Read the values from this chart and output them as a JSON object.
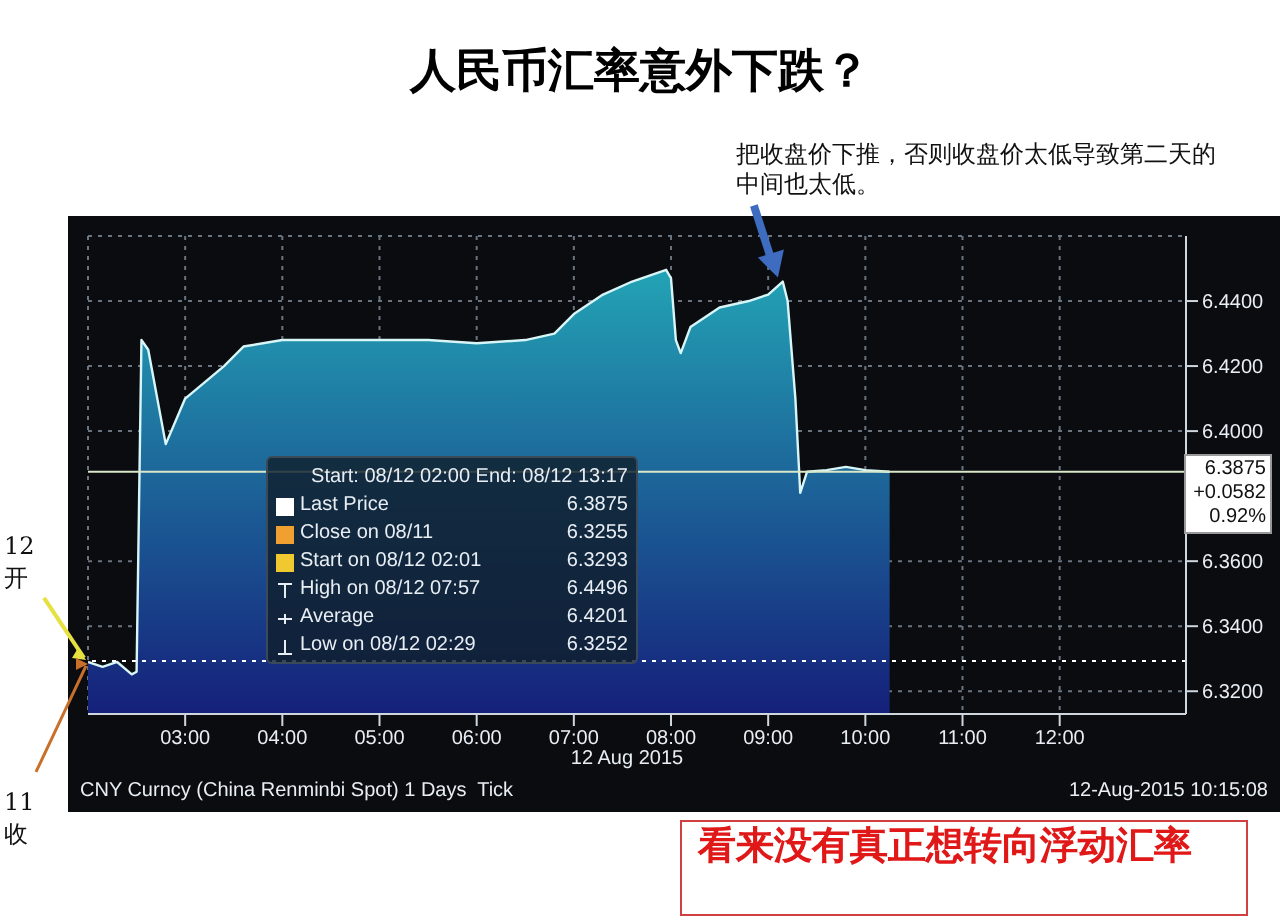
{
  "chart_data": {
    "type": "area",
    "title": "人民币汇率意外下跌？",
    "xlabel": "12 Aug 2015",
    "x": [
      2.0,
      2.15,
      2.3,
      2.45,
      2.5,
      2.55,
      2.62,
      2.8,
      3.0,
      3.2,
      3.4,
      3.6,
      4.0,
      4.5,
      5.0,
      5.5,
      6.0,
      6.5,
      6.8,
      7.0,
      7.3,
      7.6,
      7.95,
      8.0,
      8.05,
      8.1,
      8.2,
      8.5,
      8.8,
      9.0,
      9.15,
      9.2,
      9.28,
      9.33,
      9.4,
      9.6,
      9.8,
      10.0,
      10.25
    ],
    "series": [
      {
        "color": "#23a3b5",
        "values": [
          6.329,
          6.3275,
          6.329,
          6.3252,
          6.326,
          6.428,
          6.425,
          6.396,
          6.41,
          6.415,
          6.42,
          6.426,
          6.428,
          6.428,
          6.428,
          6.428,
          6.427,
          6.428,
          6.43,
          6.436,
          6.442,
          6.446,
          6.4496,
          6.447,
          6.428,
          6.424,
          6.432,
          6.438,
          6.44,
          6.442,
          6.446,
          6.44,
          6.41,
          6.381,
          6.3875,
          6.388,
          6.389,
          6.388,
          6.3875
        ]
      }
    ],
    "xlim": [
      2.0,
      13.3
    ],
    "xticks": [
      {
        "value": 3,
        "label": "03:00"
      },
      {
        "value": 4,
        "label": "04:00"
      },
      {
        "value": 5,
        "label": "05:00"
      },
      {
        "value": 6,
        "label": "06:00"
      },
      {
        "value": 7,
        "label": "07:00"
      },
      {
        "value": 8,
        "label": "08:00"
      },
      {
        "value": 9,
        "label": "09:00"
      },
      {
        "value": 10,
        "label": "10:00"
      },
      {
        "value": 11,
        "label": "11:00"
      },
      {
        "value": 12,
        "label": "12:00"
      }
    ],
    "ylim": [
      6.313,
      6.46
    ],
    "yticks": [
      {
        "value": 6.32,
        "label": "6.3200"
      },
      {
        "value": 6.34,
        "label": "6.3400"
      },
      {
        "value": 6.36,
        "label": "6.3600"
      },
      {
        "value": 6.4,
        "label": "6.4000"
      },
      {
        "value": 6.42,
        "label": "6.4200"
      },
      {
        "value": 6.44,
        "label": "6.4400"
      }
    ],
    "grid": true,
    "legend": false,
    "ref_lines": [
      {
        "axis": "y",
        "value": 6.3875,
        "label": "6.3875",
        "color": "#d8e8c8",
        "line_style": "solid"
      },
      {
        "axis": "y",
        "value": 6.3293,
        "color": "#ffffff",
        "line_style": "dotted"
      }
    ],
    "annotations": [
      "Start: 08/12 02:00 End: 08/12 13:17",
      "Last Price 6.3875",
      "Close on 08/11 6.3255",
      "Start on 08/12 02:01 6.3293",
      "High on 08/12 07:57 6.4496",
      "Average 6.4201",
      "Low on 08/12 02:29 6.3252",
      "+0.0582",
      "0.92%",
      "CNY Curncy (China Renminbi Spot) 1 Days  Tick",
      "12-Aug-2015 10:15:08",
      "看来没有真正想转向浮动汇率",
      "把收盘价下推，否则收盘价太低导致第二天的中间也太低。",
      "12 开",
      "11 收"
    ]
  }
}
